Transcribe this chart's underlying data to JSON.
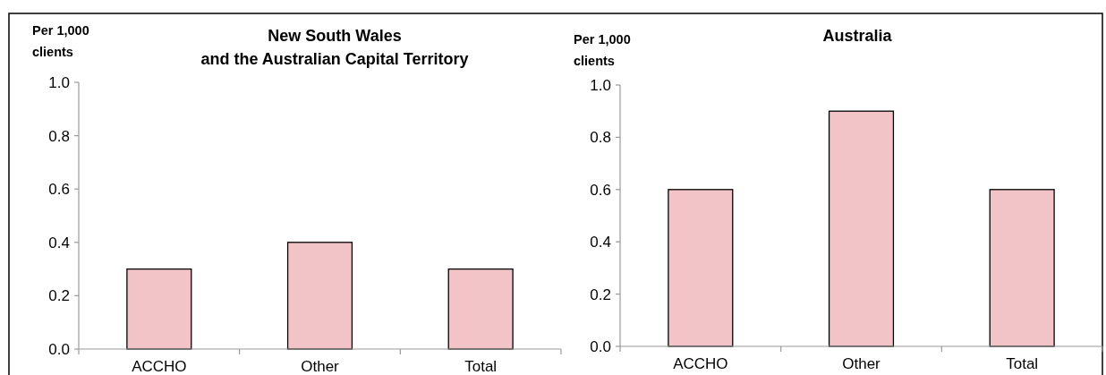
{
  "chart_data": [
    {
      "type": "bar",
      "title": "New South Wales\nand the Australian Capital Territory",
      "ylabel": "Per 1,000\nclients",
      "categories": [
        "ACCHO",
        "Other",
        "Total"
      ],
      "values": [
        0.3,
        0.4,
        0.3
      ],
      "color": "#f2c4c7",
      "ylim": [
        0,
        1
      ],
      "yticks": [
        {
          "value": 0,
          "label": "0.0"
        },
        {
          "value": 0.2,
          "label": "0.2"
        },
        {
          "value": 0.4,
          "label": "0.4"
        },
        {
          "value": 0.6,
          "label": "0.6"
        },
        {
          "value": 0.8,
          "label": "0.8"
        },
        {
          "value": 1,
          "label": "1.0"
        }
      ],
      "grid": false
    },
    {
      "type": "bar",
      "title": "Australia",
      "ylabel": "Per 1,000\nclients",
      "categories": [
        "ACCHO",
        "Other",
        "Total"
      ],
      "values": [
        0.6,
        0.9,
        0.6
      ],
      "color": "#f2c4c7",
      "ylim": [
        0,
        1
      ],
      "yticks": [
        {
          "value": 0,
          "label": "0.0"
        },
        {
          "value": 0.2,
          "label": "0.2"
        },
        {
          "value": 0.4,
          "label": "0.4"
        },
        {
          "value": 0.6,
          "label": "0.6"
        },
        {
          "value": 0.8,
          "label": "0.8"
        },
        {
          "value": 1,
          "label": "1.0"
        }
      ],
      "grid": false
    }
  ]
}
